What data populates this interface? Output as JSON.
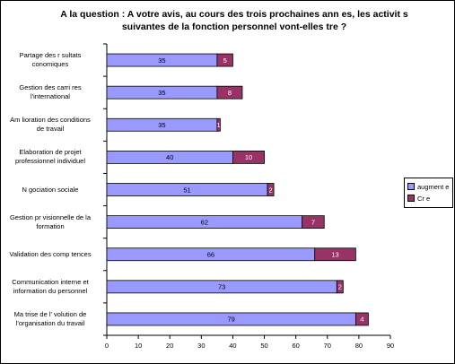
{
  "title_lines": [
    "A la question : A votre avis, au cours des trois prochaines ann es, les activit s",
    "suivantes de la fonction personnel vont-elles tre ?"
  ],
  "chart_data": {
    "type": "bar",
    "orientation": "horizontal",
    "stacked": true,
    "categories": [
      [
        "Partage des r sultats",
        " conomiques"
      ],
      [
        "Gestion des carri res",
        "l'international"
      ],
      [
        "Am lioration des conditions",
        "de travail"
      ],
      [
        "Elaboration de projet",
        "professionnel individuel"
      ],
      [
        "N gociation sociale"
      ],
      [
        "Gestion pr visionnelle de la",
        "formation"
      ],
      [
        "Validation des comp tences"
      ],
      [
        "Communication interne et",
        "information du personnel"
      ],
      [
        "Ma trise de l' volution de",
        "l'organisation du travail"
      ]
    ],
    "series": [
      {
        "name": "augment e",
        "color": "#9999ff",
        "values": [
          35,
          35,
          35,
          40,
          51,
          62,
          66,
          73,
          79
        ]
      },
      {
        "name": "Cr  e",
        "color": "#993366",
        "values": [
          5,
          8,
          1,
          10,
          2,
          7,
          13,
          2,
          4
        ]
      }
    ],
    "xlim": [
      0,
      90
    ],
    "xticks": [
      0,
      10,
      20,
      30,
      40,
      50,
      60,
      70,
      80,
      90
    ],
    "grid": false,
    "legend_position": "right"
  }
}
